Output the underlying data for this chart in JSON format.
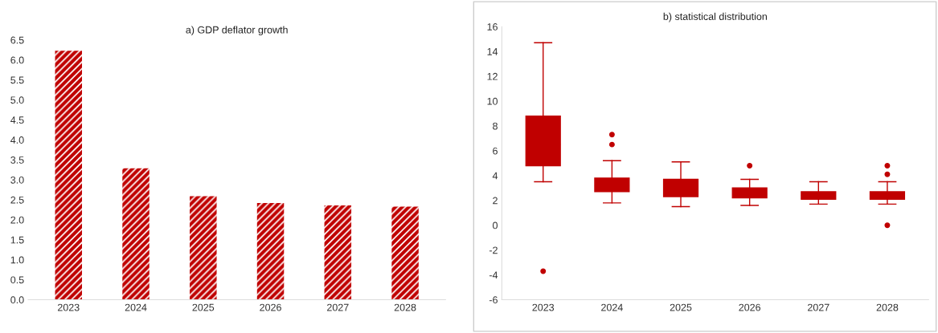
{
  "chart_data": [
    {
      "type": "bar",
      "title": "a) GDP deflator growth",
      "categories": [
        "2023",
        "2024",
        "2025",
        "2026",
        "2027",
        "2028"
      ],
      "values": [
        6.23,
        3.29,
        2.59,
        2.42,
        2.36,
        2.33
      ],
      "color": "#c00000",
      "ylim": [
        0,
        6.5
      ],
      "yticks": [
        {
          "value": 0,
          "label": "0.0"
        },
        {
          "value": 0.5,
          "label": "0.5"
        },
        {
          "value": 1,
          "label": "1.0"
        },
        {
          "value": 1.5,
          "label": "1.5"
        },
        {
          "value": 2,
          "label": "2.0"
        },
        {
          "value": 2.5,
          "label": "2.5"
        },
        {
          "value": 3,
          "label": "3.0"
        },
        {
          "value": 3.5,
          "label": "3.5"
        },
        {
          "value": 4,
          "label": "4.0"
        },
        {
          "value": 4.5,
          "label": "4.5"
        },
        {
          "value": 5,
          "label": "5.0"
        },
        {
          "value": 5.5,
          "label": "5.5"
        },
        {
          "value": 6,
          "label": "6.0"
        },
        {
          "value": 6.5,
          "label": "6.5"
        }
      ],
      "grid": false
    },
    {
      "type": "box",
      "title": "b) statistical distribution",
      "categories": [
        "2023",
        "2024",
        "2025",
        "2026",
        "2027",
        "2028"
      ],
      "color": "#c00000",
      "boxes": [
        {
          "low": 3.5,
          "q1": 4.8,
          "median": 6.5,
          "q3": 8.8,
          "high": 14.7,
          "outliers": [
            -3.7
          ]
        },
        {
          "low": 1.8,
          "q1": 2.7,
          "median": 3.2,
          "q3": 3.8,
          "high": 5.2,
          "outliers": [
            6.5,
            7.3
          ]
        },
        {
          "low": 1.5,
          "q1": 2.3,
          "median": 3.0,
          "q3": 3.7,
          "high": 5.1
        },
        {
          "low": 1.6,
          "q1": 2.2,
          "median": 2.5,
          "q3": 3.0,
          "high": 3.7,
          "outliers": [
            4.8
          ]
        },
        {
          "low": 1.7,
          "q1": 2.1,
          "median": 2.4,
          "q3": 2.7,
          "high": 3.5
        },
        {
          "low": 1.7,
          "q1": 2.1,
          "median": 2.4,
          "q3": 2.7,
          "high": 3.5,
          "outliers": [
            0.0,
            4.1,
            4.8
          ]
        }
      ],
      "ylim": [
        -6,
        16
      ],
      "yticks": [
        -6,
        -4,
        -2,
        0,
        2,
        4,
        6,
        8,
        10,
        12,
        14,
        16
      ],
      "grid": false
    }
  ]
}
